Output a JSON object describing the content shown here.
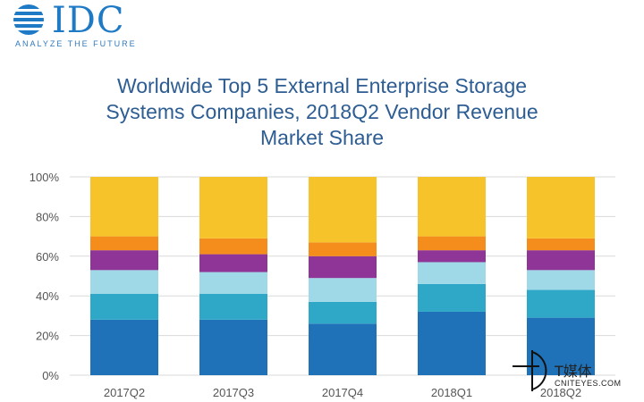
{
  "logo": {
    "brand": "IDC",
    "tagline": "ANALYZE THE FUTURE",
    "brand_color": "#1f7ac6"
  },
  "watermark": {
    "cn": "T媒体",
    "url": "CNITEYES.COM"
  },
  "chart_data": {
    "type": "bar",
    "stacked": true,
    "title_lines": [
      "Worldwide Top 5 External Enterprise Storage",
      "Systems Companies, 2018Q2 Vendor Revenue",
      "Market Share"
    ],
    "categories": [
      "2017Q2",
      "2017Q3",
      "2017Q4",
      "2018Q1",
      "2018Q2"
    ],
    "ylim": [
      0,
      100
    ],
    "yticks": [
      "0%",
      "20%",
      "40%",
      "60%",
      "80%",
      "100%"
    ],
    "grid": true,
    "series": [
      {
        "color": "#1f72b8",
        "values": [
          28,
          28,
          26,
          32,
          29
        ]
      },
      {
        "color": "#2fa8c8",
        "values": [
          13,
          13,
          11,
          14,
          14
        ]
      },
      {
        "color": "#9fd9e8",
        "values": [
          12,
          11,
          12,
          11,
          10
        ]
      },
      {
        "color": "#8e3597",
        "values": [
          10,
          9,
          11,
          6,
          10
        ]
      },
      {
        "color": "#f48d1b",
        "values": [
          7,
          8,
          7,
          7,
          6
        ]
      },
      {
        "color": "#f7c32a",
        "values": [
          30,
          31,
          33,
          30,
          31
        ]
      }
    ]
  }
}
